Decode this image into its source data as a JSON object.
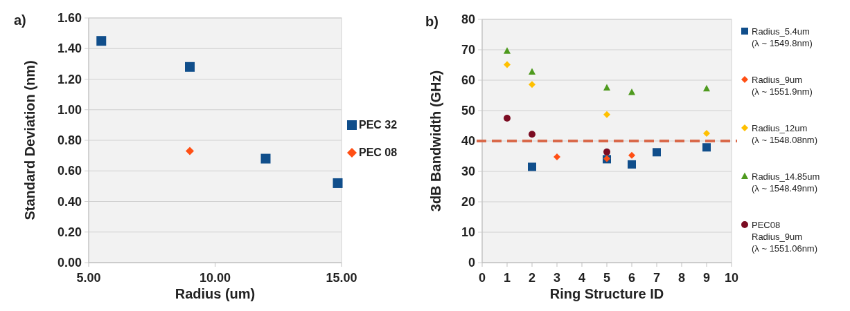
{
  "chart_data": [
    {
      "type": "scatter",
      "title": "a)",
      "xlabel": "Radius (um)",
      "ylabel": "Standard Deviation (nm)",
      "xlim": [
        5,
        15
      ],
      "xticks": [
        {
          "value": 5,
          "label": "5.00"
        },
        {
          "value": 10,
          "label": "10.00"
        },
        {
          "value": 15,
          "label": "15.00"
        }
      ],
      "ylim": [
        0,
        1.6
      ],
      "yticks": [
        {
          "value": 0,
          "label": "0.00"
        },
        {
          "value": 0.2,
          "label": "0.20"
        },
        {
          "value": 0.4,
          "label": "0.40"
        },
        {
          "value": 0.6,
          "label": "0.60"
        },
        {
          "value": 0.8,
          "label": "0.80"
        },
        {
          "value": 1.0,
          "label": "1.00"
        },
        {
          "value": 1.2,
          "label": "1.20"
        },
        {
          "value": 1.4,
          "label": "1.40"
        },
        {
          "value": 1.6,
          "label": "1.60"
        }
      ],
      "grid": "y",
      "legend": "right",
      "series": [
        {
          "name": "PEC 32",
          "color": "#104e8b",
          "marker": "square",
          "x": [
            5.5,
            9,
            12,
            14.85
          ],
          "values": [
            1.45,
            1.28,
            0.68,
            0.52
          ]
        },
        {
          "name": "PEC 08",
          "color": "#ff4f14",
          "marker": "diamond",
          "x": [
            9
          ],
          "values": [
            0.73
          ]
        }
      ]
    },
    {
      "type": "scatter",
      "title": "b)",
      "xlabel": "Ring Structure ID",
      "ylabel": "3dB Bandwidth (GHz)",
      "xlim": [
        0,
        10
      ],
      "xticks": [
        0,
        1,
        2,
        3,
        4,
        5,
        6,
        7,
        8,
        9,
        10
      ],
      "ylim": [
        0,
        80
      ],
      "yticks": [
        0,
        10,
        20,
        30,
        40,
        50,
        60,
        70,
        80
      ],
      "grid": "y",
      "legend": "right",
      "ref_lines": [
        {
          "axis": "y",
          "value": 40,
          "color": "#d9694a",
          "line_style": "dashed"
        }
      ],
      "series": [
        {
          "name": "Radius_5.4um\n(λ ~ 1549.8nm)",
          "color": "#104e8b",
          "marker": "square",
          "x": [
            2,
            5,
            6,
            7,
            9
          ],
          "values": [
            31.5,
            34,
            32.3,
            36.3,
            37.9
          ]
        },
        {
          "name": "Radius_9um\n(λ ~ 1551.9nm)",
          "color": "#ff4f14",
          "marker": "diamond",
          "x": [
            3,
            5,
            6
          ],
          "values": [
            34.8,
            34.2,
            35.3
          ]
        },
        {
          "name": "Radius_12um\n(λ ~ 1548.08nm)",
          "color": "#ffc000",
          "marker": "diamond",
          "x": [
            1,
            2,
            5,
            9
          ],
          "values": [
            65.1,
            58.6,
            48.7,
            42.5
          ]
        },
        {
          "name": "Radius_14.85um\n(λ ~ 1548.49nm)",
          "color": "#4e9a1e",
          "marker": "triangle",
          "x": [
            1,
            2,
            5,
            6,
            9
          ],
          "values": [
            69.6,
            62.7,
            57.5,
            56,
            57.2
          ]
        },
        {
          "name": "PEC08\nRadius_9um\n(λ ~ 1551.06nm)",
          "color": "#7b0c22",
          "marker": "circle",
          "x": [
            1,
            2,
            5
          ],
          "values": [
            47.5,
            42.2,
            36.4
          ]
        }
      ]
    }
  ]
}
